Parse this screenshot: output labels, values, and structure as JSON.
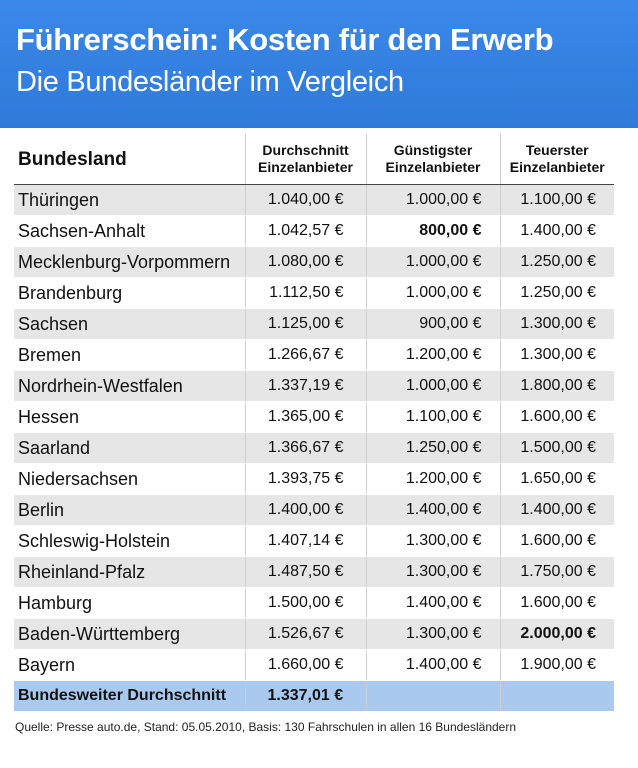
{
  "header": {
    "title": "Führerschein: Kosten für den Erwerb",
    "subtitle": "Die Bundesländer im Vergleich"
  },
  "columns": {
    "c1": "Bundesland",
    "c2": [
      "Durchschnitt",
      "Einzelanbieter"
    ],
    "c3": [
      "Günstigster",
      "Einzelanbieter"
    ],
    "c4": [
      "Teuerster",
      "Einzelanbieter"
    ]
  },
  "rows": [
    {
      "name": "Thüringen",
      "avg": "1.040,00 €",
      "min": "1.000,00 €",
      "max": "1.100,00 €"
    },
    {
      "name": "Sachsen-Anhalt",
      "avg": "1.042,57 €",
      "min": "800,00 €",
      "max": "1.400,00 €",
      "min_bold": true
    },
    {
      "name": "Mecklenburg-Vorpommern",
      "avg": "1.080,00 €",
      "min": "1.000,00 €",
      "max": "1.250,00 €"
    },
    {
      "name": "Brandenburg",
      "avg": "1.112,50 €",
      "min": "1.000,00 €",
      "max": "1.250,00 €"
    },
    {
      "name": "Sachsen",
      "avg": "1.125,00 €",
      "min": "900,00 €",
      "max": "1.300,00 €"
    },
    {
      "name": "Bremen",
      "avg": "1.266,67 €",
      "min": "1.200,00 €",
      "max": "1.300,00 €"
    },
    {
      "name": "Nordrhein-Westfalen",
      "avg": "1.337,19 €",
      "min": "1.000,00 €",
      "max": "1.800,00 €"
    },
    {
      "name": "Hessen",
      "avg": "1.365,00 €",
      "min": "1.100,00 €",
      "max": "1.600,00 €"
    },
    {
      "name": "Saarland",
      "avg": "1.366,67 €",
      "min": "1.250,00 €",
      "max": "1.500,00 €"
    },
    {
      "name": "Niedersachsen",
      "avg": "1.393,75 €",
      "min": "1.200,00 €",
      "max": "1.650,00 €"
    },
    {
      "name": "Berlin",
      "avg": "1.400,00 €",
      "min": "1.400,00 €",
      "max": "1.400,00 €"
    },
    {
      "name": "Schleswig-Holstein",
      "avg": "1.407,14 €",
      "min": "1.300,00 €",
      "max": "1.600,00 €"
    },
    {
      "name": "Rheinland-Pfalz",
      "avg": "1.487,50 €",
      "min": "1.300,00 €",
      "max": "1.750,00 €"
    },
    {
      "name": "Hamburg",
      "avg": "1.500,00 €",
      "min": "1.400,00 €",
      "max": "1.600,00 €"
    },
    {
      "name": "Baden-Württemberg",
      "avg": "1.526,67 €",
      "min": "1.300,00 €",
      "max": "2.000,00 €",
      "max_bold": true
    },
    {
      "name": "Bayern",
      "avg": "1.660,00 €",
      "min": "1.400,00 €",
      "max": "1.900,00 €"
    }
  ],
  "total": {
    "label": "Bundesweiter Durchschnitt",
    "value": "1.337,01 €"
  },
  "source": "Quelle: Presse auto.de, Stand: 05.05.2010, Basis: 130 Fahrschulen in allen 16 Bundesländern",
  "colors": {
    "header_bg": "#3380e0",
    "stripe": "#e6e6e6",
    "total_bg": "#a9c9ef"
  },
  "chart_data": {
    "type": "table",
    "title": "Führerschein: Kosten für den Erwerb",
    "subtitle": "Die Bundesländer im Vergleich",
    "columns": [
      "Bundesland",
      "Durchschnitt Einzelanbieter",
      "Günstigster Einzelanbieter",
      "Teuerster Einzelanbieter"
    ],
    "rows": [
      [
        "Thüringen",
        1040.0,
        1000.0,
        1100.0
      ],
      [
        "Sachsen-Anhalt",
        1042.57,
        800.0,
        1400.0
      ],
      [
        "Mecklenburg-Vorpommern",
        1080.0,
        1000.0,
        1250.0
      ],
      [
        "Brandenburg",
        1112.5,
        1000.0,
        1250.0
      ],
      [
        "Sachsen",
        1125.0,
        900.0,
        1300.0
      ],
      [
        "Bremen",
        1266.67,
        1200.0,
        1300.0
      ],
      [
        "Nordrhein-Westfalen",
        1337.19,
        1000.0,
        1800.0
      ],
      [
        "Hessen",
        1365.0,
        1100.0,
        1600.0
      ],
      [
        "Saarland",
        1366.67,
        1250.0,
        1500.0
      ],
      [
        "Niedersachsen",
        1393.75,
        1200.0,
        1650.0
      ],
      [
        "Berlin",
        1400.0,
        1400.0,
        1400.0
      ],
      [
        "Schleswig-Holstein",
        1407.14,
        1300.0,
        1600.0
      ],
      [
        "Rheinland-Pfalz",
        1487.5,
        1300.0,
        1750.0
      ],
      [
        "Hamburg",
        1500.0,
        1400.0,
        1600.0
      ],
      [
        "Baden-Württemberg",
        1526.67,
        1300.0,
        2000.0
      ],
      [
        "Bayern",
        1660.0,
        1400.0,
        1900.0
      ]
    ],
    "total": {
      "label": "Bundesweiter Durchschnitt",
      "value": 1337.01
    }
  }
}
